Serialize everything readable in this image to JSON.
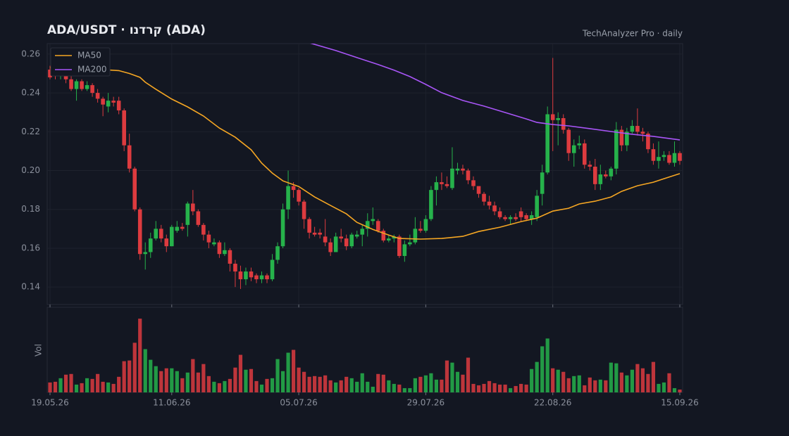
{
  "chart_data": {
    "type": "candlestick",
    "title": "ADA/USDT  ·  קרדנו (ADA)",
    "subtitle": "TechAnalyzer Pro · daily",
    "volume_label": "Vol",
    "categories": [
      "19.05.26",
      null,
      null,
      null,
      null,
      null,
      null,
      null,
      null,
      null,
      null,
      null,
      null,
      null,
      null,
      null,
      null,
      null,
      null,
      null,
      null,
      null,
      null,
      "11.06.26",
      null,
      null,
      null,
      null,
      null,
      null,
      null,
      null,
      null,
      null,
      null,
      null,
      null,
      null,
      null,
      null,
      null,
      null,
      null,
      null,
      null,
      null,
      null,
      "05.07.26",
      null,
      null,
      null,
      null,
      null,
      null,
      null,
      null,
      null,
      null,
      null,
      null,
      null,
      null,
      null,
      null,
      null,
      null,
      null,
      null,
      null,
      null,
      null,
      "29.07.26",
      null,
      null,
      null,
      null,
      null,
      null,
      null,
      null,
      null,
      null,
      null,
      null,
      null,
      null,
      null,
      null,
      null,
      null,
      null,
      null,
      null,
      null,
      null,
      "22.08.26",
      null,
      null,
      null,
      null,
      null,
      null,
      null,
      null,
      null,
      null,
      null,
      null,
      null,
      null,
      null,
      null,
      null,
      null,
      null,
      null,
      null,
      null,
      null,
      "15.09.26"
    ],
    "open": [
      0.252,
      0.251,
      0.249,
      0.251,
      0.247,
      0.242,
      0.246,
      0.242,
      0.244,
      0.24,
      0.237,
      0.233,
      0.236,
      0.236,
      0.231,
      0.213,
      0.201,
      0.18,
      0.157,
      0.158,
      0.165,
      0.17,
      0.165,
      0.161,
      0.169,
      0.171,
      0.172,
      0.183,
      0.179,
      0.172,
      0.167,
      0.162,
      0.163,
      0.157,
      0.159,
      0.152,
      0.148,
      0.144,
      0.148,
      0.146,
      0.144,
      0.146,
      0.144,
      0.154,
      0.161,
      0.18,
      0.192,
      0.19,
      0.184,
      0.175,
      0.168,
      0.168,
      0.166,
      0.163,
      0.158,
      0.166,
      0.165,
      0.161,
      0.166,
      0.167,
      0.17,
      0.174,
      0.174,
      0.169,
      0.164,
      0.165,
      0.166,
      0.156,
      0.162,
      0.163,
      0.17,
      0.169,
      0.175,
      0.19,
      0.194,
      0.193,
      0.191,
      0.2,
      0.201,
      0.2,
      0.195,
      0.192,
      0.188,
      0.184,
      0.182,
      0.179,
      0.176,
      0.175,
      0.176,
      0.179,
      0.177,
      0.175,
      0.176,
      0.188,
      0.199,
      0.229,
      0.226,
      0.227,
      0.221,
      0.209,
      0.213,
      0.214,
      0.203,
      0.202,
      0.193,
      0.198,
      0.197,
      0.201,
      0.221,
      0.213,
      0.22,
      0.223,
      0.22,
      0.219,
      0.211,
      0.205,
      0.207,
      0.208,
      0.204,
      0.209
    ],
    "high": [
      0.254,
      0.253,
      0.252,
      0.252,
      0.249,
      0.247,
      0.247,
      0.246,
      0.245,
      0.242,
      0.238,
      0.24,
      0.238,
      0.238,
      0.232,
      0.219,
      0.202,
      0.181,
      0.163,
      0.168,
      0.174,
      0.172,
      0.167,
      0.172,
      0.174,
      0.173,
      0.184,
      0.19,
      0.18,
      0.173,
      0.169,
      0.165,
      0.164,
      0.163,
      0.16,
      0.154,
      0.151,
      0.15,
      0.15,
      0.147,
      0.148,
      0.147,
      0.157,
      0.163,
      0.183,
      0.2,
      0.194,
      0.191,
      0.185,
      0.176,
      0.171,
      0.17,
      0.175,
      0.165,
      0.168,
      0.17,
      0.167,
      0.168,
      0.169,
      0.172,
      0.178,
      0.181,
      0.175,
      0.17,
      0.167,
      0.167,
      0.167,
      0.164,
      0.167,
      0.176,
      0.174,
      0.177,
      0.192,
      0.197,
      0.199,
      0.197,
      0.212,
      0.204,
      0.203,
      0.201,
      0.197,
      0.191,
      0.189,
      0.187,
      0.184,
      0.181,
      0.177,
      0.177,
      0.178,
      0.181,
      0.178,
      0.179,
      0.19,
      0.203,
      0.233,
      0.258,
      0.23,
      0.229,
      0.222,
      0.216,
      0.218,
      0.216,
      0.205,
      0.206,
      0.203,
      0.2,
      0.202,
      0.225,
      0.223,
      0.222,
      0.226,
      0.232,
      0.222,
      0.22,
      0.214,
      0.215,
      0.21,
      0.21,
      0.215,
      0.21
    ],
    "low": [
      0.247,
      0.247,
      0.247,
      0.245,
      0.241,
      0.236,
      0.241,
      0.241,
      0.238,
      0.235,
      0.228,
      0.23,
      0.233,
      0.229,
      0.21,
      0.199,
      0.179,
      0.154,
      0.149,
      0.155,
      0.164,
      0.163,
      0.158,
      0.161,
      0.168,
      0.169,
      0.166,
      0.177,
      0.171,
      0.164,
      0.16,
      0.161,
      0.155,
      0.156,
      0.148,
      0.14,
      0.139,
      0.141,
      0.143,
      0.142,
      0.142,
      0.142,
      0.143,
      0.152,
      0.16,
      0.175,
      0.186,
      0.182,
      0.17,
      0.165,
      0.166,
      0.165,
      0.161,
      0.156,
      0.158,
      0.163,
      0.159,
      0.16,
      0.165,
      0.161,
      0.166,
      0.172,
      0.168,
      0.163,
      0.163,
      0.163,
      0.155,
      0.153,
      0.161,
      0.162,
      0.168,
      0.168,
      0.174,
      0.182,
      0.19,
      0.191,
      0.19,
      0.198,
      0.198,
      0.193,
      0.19,
      0.186,
      0.182,
      0.18,
      0.177,
      0.175,
      0.174,
      0.172,
      0.174,
      0.174,
      0.174,
      0.172,
      0.174,
      0.182,
      0.198,
      0.21,
      0.213,
      0.219,
      0.205,
      0.202,
      0.211,
      0.201,
      0.2,
      0.19,
      0.19,
      0.196,
      0.195,
      0.198,
      0.21,
      0.21,
      0.219,
      0.218,
      0.215,
      0.209,
      0.203,
      0.201,
      0.205,
      0.203,
      0.202,
      0.203
    ],
    "close": [
      0.248,
      0.249,
      0.251,
      0.247,
      0.242,
      0.246,
      0.242,
      0.244,
      0.24,
      0.237,
      0.234,
      0.236,
      0.235,
      0.231,
      0.213,
      0.201,
      0.18,
      0.157,
      0.158,
      0.165,
      0.17,
      0.165,
      0.161,
      0.171,
      0.171,
      0.17,
      0.183,
      0.179,
      0.172,
      0.167,
      0.163,
      0.163,
      0.157,
      0.159,
      0.152,
      0.148,
      0.144,
      0.148,
      0.145,
      0.144,
      0.146,
      0.144,
      0.154,
      0.161,
      0.18,
      0.192,
      0.19,
      0.184,
      0.175,
      0.168,
      0.167,
      0.167,
      0.163,
      0.158,
      0.166,
      0.165,
      0.161,
      0.167,
      0.167,
      0.17,
      0.174,
      0.175,
      0.169,
      0.164,
      0.165,
      0.166,
      0.156,
      0.162,
      0.163,
      0.17,
      0.169,
      0.175,
      0.19,
      0.194,
      0.193,
      0.192,
      0.201,
      0.201,
      0.2,
      0.195,
      0.192,
      0.188,
      0.184,
      0.182,
      0.179,
      0.176,
      0.175,
      0.176,
      0.175,
      0.176,
      0.175,
      0.177,
      0.187,
      0.199,
      0.229,
      0.226,
      0.227,
      0.221,
      0.209,
      0.213,
      0.214,
      0.203,
      0.202,
      0.193,
      0.198,
      0.197,
      0.201,
      0.221,
      0.213,
      0.22,
      0.223,
      0.22,
      0.219,
      0.211,
      0.205,
      0.207,
      0.208,
      0.204,
      0.209,
      0.205
    ],
    "volume": [
      14,
      15,
      20,
      25,
      26,
      11,
      13,
      20,
      19,
      26,
      15,
      14,
      12,
      22,
      44,
      45,
      70,
      104,
      61,
      46,
      37,
      30,
      34,
      34,
      30,
      20,
      28,
      47,
      28,
      40,
      23,
      15,
      13,
      16,
      19,
      35,
      53,
      32,
      33,
      16,
      11,
      19,
      20,
      47,
      30,
      56,
      60,
      35,
      29,
      22,
      23,
      22,
      24,
      17,
      14,
      17,
      22,
      20,
      15,
      27,
      15,
      8,
      26,
      25,
      17,
      12,
      11,
      6,
      6,
      20,
      22,
      24,
      27,
      18,
      18,
      45,
      42,
      29,
      25,
      49,
      12,
      10,
      12,
      16,
      13,
      11,
      11,
      6,
      9,
      12,
      11,
      33,
      43,
      65,
      76,
      34,
      32,
      29,
      20,
      23,
      24,
      10,
      21,
      17,
      18,
      17,
      42,
      41,
      28,
      24,
      32,
      40,
      34,
      26,
      43,
      12,
      14,
      27,
      6,
      4
    ],
    "volume_ylim": [
      0,
      120
    ],
    "up_color": "#26b24b",
    "down_color": "#dd3b3f",
    "ylim": [
      0.131,
      0.2654
    ],
    "yticks": [
      0.14,
      0.16,
      0.18,
      {
        "value": 0.2,
        "label": "0.20"
      },
      0.22,
      0.24,
      0.26
    ],
    "grid": true,
    "legend": "upper left",
    "series": [
      {
        "name": "MA50",
        "color": "#f5a623",
        "x": [
          0,
          10,
          13,
          15,
          17,
          18,
          20,
          23,
          26,
          29,
          32,
          35,
          38,
          40,
          42,
          44,
          47,
          50,
          53,
          56,
          58,
          61,
          64,
          66,
          70,
          74,
          78,
          81,
          85,
          89,
          92,
          95,
          98,
          100,
          103,
          106,
          108,
          111,
          114,
          116,
          119
        ],
        "values": [
          0.253,
          0.252,
          0.2515,
          0.25,
          0.248,
          0.2455,
          0.2419,
          0.2368,
          0.2328,
          0.2281,
          0.2219,
          0.2172,
          0.2107,
          0.2038,
          0.1987,
          0.1947,
          0.1918,
          0.1864,
          0.182,
          0.1777,
          0.1733,
          0.1697,
          0.1668,
          0.165,
          0.1647,
          0.165,
          0.1661,
          0.1686,
          0.1708,
          0.1737,
          0.1755,
          0.1791,
          0.1806,
          0.1828,
          0.1842,
          0.1864,
          0.1893,
          0.1922,
          0.194,
          0.1958,
          0.1984
        ]
      },
      {
        "name": "MA200",
        "color": "#a855f7",
        "x": [
          49,
          54,
          58,
          62,
          65,
          68,
          71,
          74,
          78,
          82,
          86,
          90,
          92,
          95,
          98,
          102,
          106,
          110,
          114,
          119
        ],
        "values": [
          0.2658,
          0.2618,
          0.2582,
          0.2546,
          0.2517,
          0.2484,
          0.2444,
          0.2401,
          0.2361,
          0.2332,
          0.2299,
          0.2266,
          0.2248,
          0.2237,
          0.223,
          0.2216,
          0.2201,
          0.2187,
          0.2176,
          0.2158
        ]
      }
    ]
  }
}
